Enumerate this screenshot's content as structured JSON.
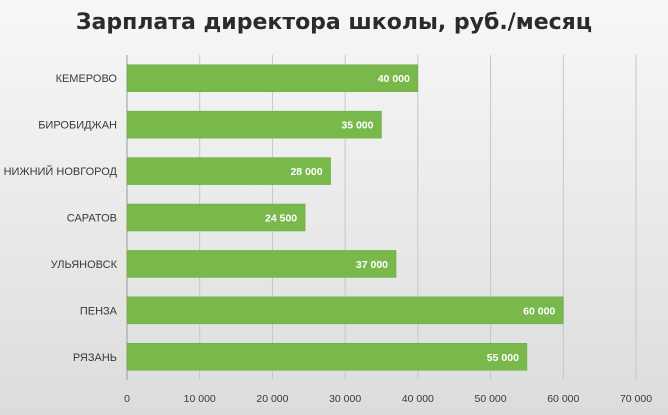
{
  "chart_data": {
    "type": "bar",
    "orientation": "horizontal",
    "title": "Зарплата директора школы, руб./месяц",
    "categories": [
      "КЕМЕРОВО",
      "БИРОБИДЖАН",
      "НИЖНИЙ НОВГОРОД",
      "САРАТОВ",
      "УЛЬЯНОВСК",
      "ПЕНЗА",
      "РЯЗАНЬ"
    ],
    "values": [
      40000,
      35000,
      28000,
      24500,
      37000,
      60000,
      55000
    ],
    "data_labels": [
      "40 000",
      "35 000",
      "28 000",
      "24 500",
      "37 000",
      "60 000",
      "55 000"
    ],
    "xlim": [
      0,
      70000
    ],
    "x_ticks": [
      0,
      10000,
      20000,
      30000,
      40000,
      50000,
      60000,
      70000
    ],
    "x_tick_labels": [
      "0",
      "10 000",
      "20 000",
      "30 000",
      "40 000",
      "50 000",
      "60 000",
      "70 000"
    ],
    "bar_color": "#79b84a",
    "grid": "vertical",
    "legend": "none"
  }
}
